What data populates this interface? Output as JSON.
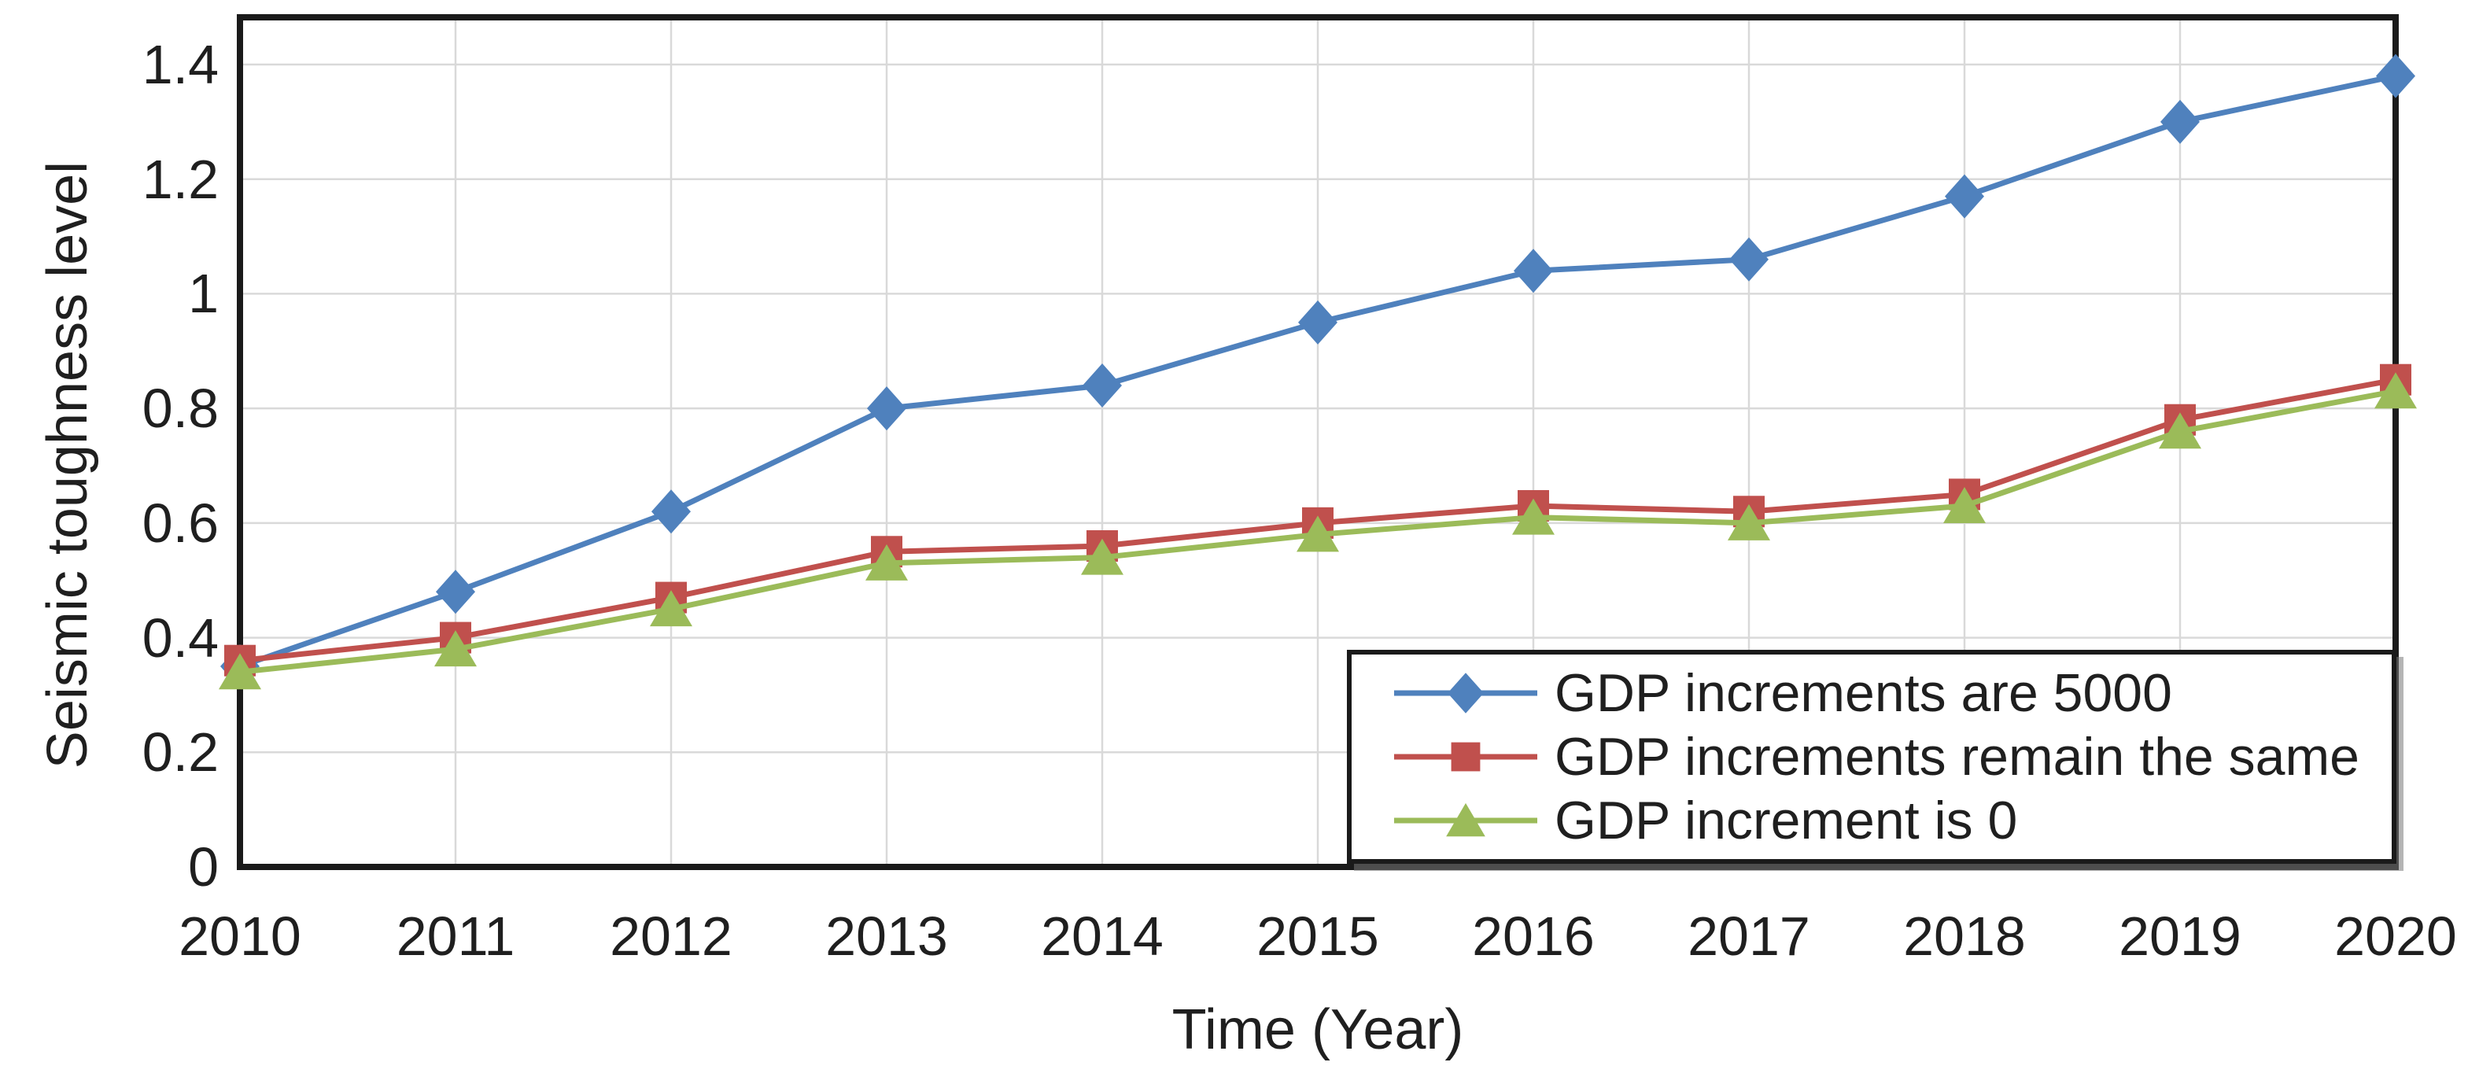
{
  "chart_data": {
    "type": "line",
    "title": "",
    "xlabel": "Time (Year)",
    "ylabel": "Seismic toughness level",
    "x": [
      2010,
      2011,
      2012,
      2013,
      2014,
      2015,
      2016,
      2017,
      2018,
      2019,
      2020
    ],
    "x_tick_labels": [
      "2010",
      "2011",
      "2012",
      "2013",
      "2014",
      "2015",
      "2016",
      "2017",
      "2018",
      "2019",
      "2020"
    ],
    "y_tick_labels": [
      "0",
      "0.2",
      "0.4",
      "0.6",
      "0.8",
      "1",
      "1.2",
      "1.4"
    ],
    "y_tick_values": [
      0,
      0.2,
      0.4,
      0.6,
      0.8,
      1.0,
      1.2,
      1.4
    ],
    "ylim": [
      0,
      1.4
    ],
    "grid": true,
    "legend_position": "inside-bottom-right",
    "series": [
      {
        "name": "GDP increments are 5000",
        "color": "#4F81BD",
        "marker": "diamond",
        "values": [
          0.35,
          0.48,
          0.62,
          0.8,
          0.84,
          0.95,
          1.04,
          1.06,
          1.17,
          1.3,
          1.38
        ]
      },
      {
        "name": "GDP increments remain the same",
        "color": "#C0504D",
        "marker": "square",
        "values": [
          0.36,
          0.4,
          0.47,
          0.55,
          0.56,
          0.6,
          0.63,
          0.62,
          0.65,
          0.78,
          0.85
        ]
      },
      {
        "name": "GDP increment is 0",
        "color": "#9BBB59",
        "marker": "triangle",
        "values": [
          0.34,
          0.38,
          0.45,
          0.53,
          0.54,
          0.58,
          0.61,
          0.6,
          0.63,
          0.76,
          0.83
        ]
      }
    ],
    "colors": {
      "gridline": "#D9D9D9",
      "axis_border": "#1a1a1a",
      "text": "#1f1f1f",
      "background": "#FFFFFF"
    }
  }
}
